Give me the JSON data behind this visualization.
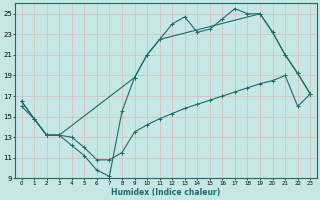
{
  "xlabel": "Humidex (Indice chaleur)",
  "background_color": "#c5e8e4",
  "grid_color": "#ddb8b8",
  "line_color": "#1a6b6b",
  "xlim": [
    -0.5,
    23.5
  ],
  "ylim": [
    9,
    26
  ],
  "xticks": [
    0,
    1,
    2,
    3,
    4,
    5,
    6,
    7,
    8,
    9,
    10,
    11,
    12,
    13,
    14,
    15,
    16,
    17,
    18,
    19,
    20,
    21,
    22,
    23
  ],
  "yticks": [
    9,
    11,
    13,
    15,
    17,
    19,
    21,
    23,
    25
  ],
  "line1_x": [
    0,
    1,
    2,
    3,
    4,
    5,
    6,
    7,
    8,
    9,
    10,
    11,
    12,
    13,
    14,
    15,
    16,
    17,
    18,
    19,
    20,
    21,
    22,
    23
  ],
  "line1_y": [
    16.5,
    14.8,
    13.2,
    13.2,
    12.2,
    11.2,
    9.8,
    9.2,
    15.5,
    18.8,
    21.0,
    22.5,
    24.0,
    24.7,
    23.2,
    23.5,
    24.5,
    25.5,
    25.0,
    25.0,
    23.2,
    21.0,
    19.2,
    17.2
  ],
  "line2_x": [
    0,
    1,
    2,
    3,
    4,
    5,
    6,
    7,
    8,
    9,
    10,
    11,
    12,
    13,
    14,
    15,
    16,
    17,
    18,
    19,
    20,
    21,
    22,
    23
  ],
  "line2_y": [
    16.0,
    14.8,
    13.2,
    13.2,
    13.0,
    12.0,
    10.8,
    10.8,
    11.5,
    13.5,
    14.2,
    14.8,
    15.3,
    15.8,
    16.2,
    16.6,
    17.0,
    17.4,
    17.8,
    18.2,
    18.5,
    19.0,
    16.0,
    17.2
  ],
  "line3_x": [
    0,
    1,
    2,
    3,
    9,
    10,
    11,
    19,
    20,
    21,
    22,
    23
  ],
  "line3_y": [
    16.5,
    14.8,
    13.2,
    13.2,
    18.8,
    21.0,
    22.5,
    25.0,
    23.2,
    21.0,
    19.2,
    17.2
  ]
}
